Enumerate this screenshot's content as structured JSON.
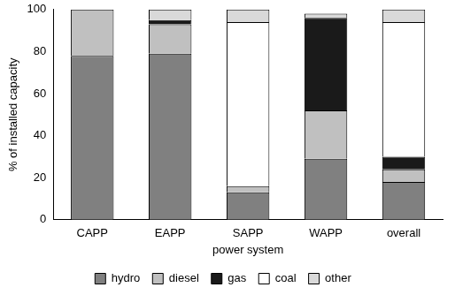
{
  "chart_data": {
    "type": "bar",
    "stacked": true,
    "x_label": "power system",
    "y_label": "% of installed capacity",
    "categories": [
      "CAPP",
      "EAPP",
      "SAPP",
      "WAPP",
      "overall"
    ],
    "series": [
      {
        "name": "hydro",
        "color": "#808080",
        "values": [
          78,
          79,
          13,
          29,
          18
        ]
      },
      {
        "name": "diesel",
        "color": "#c0c0c0",
        "values": [
          22,
          14,
          3,
          23,
          6
        ]
      },
      {
        "name": "gas",
        "color": "#1a1a1a",
        "values": [
          0,
          2,
          0,
          44,
          6
        ]
      },
      {
        "name": "coal",
        "color": "#ffffff",
        "values": [
          0,
          0,
          78,
          0,
          64
        ]
      },
      {
        "name": "other",
        "color": "#d9d9d9",
        "values": [
          0,
          5,
          6,
          2,
          6
        ]
      }
    ],
    "ylim": [
      0,
      100
    ],
    "yticks": [
      0,
      20,
      40,
      60,
      80,
      100
    ],
    "grid": false,
    "legend": "bottom"
  }
}
